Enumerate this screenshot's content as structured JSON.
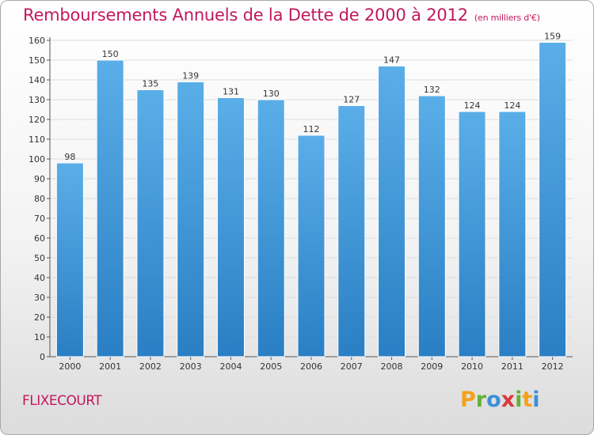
{
  "title": "Remboursements Annuels de la Dette de 2000 à 2012",
  "subtitle": "(en milliers d'€)",
  "commune": "FLIXECOURT",
  "logo": {
    "p": "P",
    "r": "r",
    "o": "o",
    "x": "x",
    "i1": "i",
    "t": "t",
    "i2": "i"
  },
  "colors": {
    "title": "#c2185b",
    "bar_top": "#5aaee8",
    "bar_bottom": "#2a7fc4",
    "bar_edge": "#ffffff"
  },
  "chart_data": {
    "type": "bar",
    "categories": [
      "2000",
      "2001",
      "2002",
      "2003",
      "2004",
      "2005",
      "2006",
      "2007",
      "2008",
      "2009",
      "2010",
      "2011",
      "2012"
    ],
    "values": [
      98,
      150,
      135,
      139,
      131,
      130,
      112,
      127,
      147,
      132,
      124,
      124,
      159
    ],
    "ylim": [
      0,
      160
    ],
    "yticks": [
      0,
      10,
      20,
      30,
      40,
      50,
      60,
      70,
      80,
      90,
      100,
      110,
      120,
      130,
      140,
      150,
      160
    ],
    "grid": true,
    "legend": "none"
  }
}
